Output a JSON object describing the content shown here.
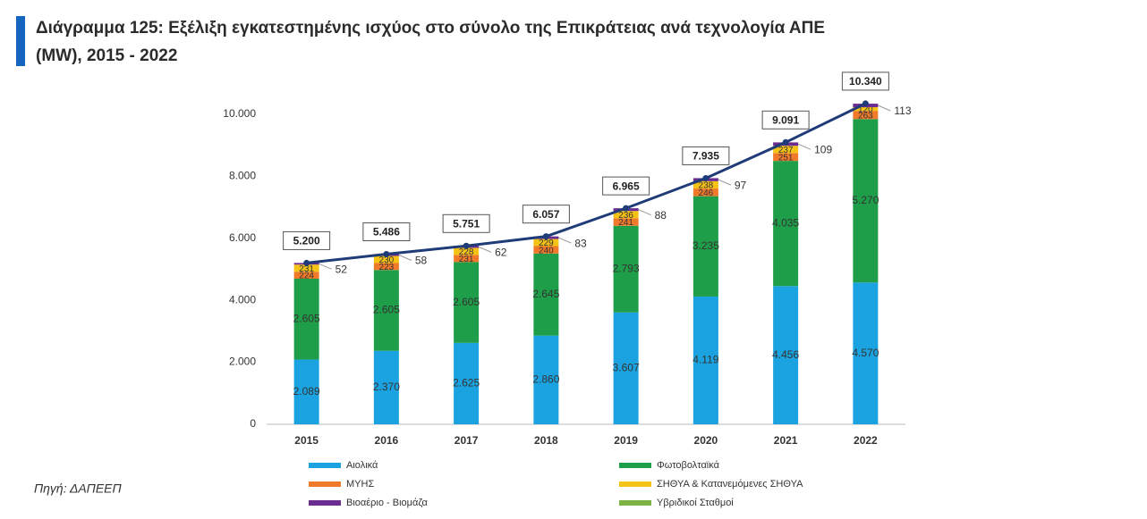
{
  "header": {
    "title_line1": "Διάγραμμα 125: Εξέλιξη εγκατεστημένης ισχύος στο σύνολο της Επικράτειας ανά τεχνολογία ΑΠΕ",
    "title_line2": "(MW), 2015 - 2022"
  },
  "source": "Πηγή: ΔΑΠΕΕΠ",
  "chart_data": {
    "type": "stacked_bar",
    "categories": [
      "2015",
      "2016",
      "2017",
      "2018",
      "2019",
      "2020",
      "2021",
      "2022"
    ],
    "series": [
      {
        "name": "Αιολικά",
        "color": "#1aa3e0",
        "values": [
          2089,
          2370,
          2625,
          2860,
          3607,
          4119,
          4456,
          4570
        ],
        "value_labels": [
          "2.089",
          "2.370",
          "2.625",
          "2.860",
          "3.607",
          "4.119",
          "4.456",
          "4.570"
        ]
      },
      {
        "name": "Φωτοβολταϊκά",
        "color": "#1e9e48",
        "values": [
          2605,
          2605,
          2605,
          2645,
          2793,
          3235,
          4035,
          5270
        ],
        "value_labels": [
          "2.605",
          "2.605",
          "2.605",
          "2.645",
          "2.793",
          "3.235",
          "4.035",
          "5.270"
        ]
      },
      {
        "name": "ΜΥΗΣ",
        "color": "#f07a2a",
        "values": [
          224,
          223,
          231,
          240,
          241,
          246,
          251,
          263
        ]
      },
      {
        "name": "ΣΗΘΥΑ & Κατανεμόμενες ΣΗΘΥΑ",
        "color": "#f5c216",
        "values": [
          231,
          230,
          228,
          229,
          236,
          238,
          237,
          120
        ]
      },
      {
        "name": "Βιοαέριο - Βιομάζα",
        "color": "#6a2c91",
        "values": [
          52,
          58,
          62,
          83,
          88,
          97,
          109,
          113
        ]
      },
      {
        "name": "Υβριδικοί Σταθμοί",
        "color": "#7cb342",
        "values": [
          null,
          null,
          null,
          null,
          null,
          null,
          null,
          null
        ]
      }
    ],
    "totals": {
      "color": "#1f3c78",
      "values": [
        5200,
        5486,
        5751,
        6057,
        6965,
        7935,
        9091,
        10340
      ],
      "value_labels": [
        "5.200",
        "5.486",
        "5.751",
        "6.057",
        "6.965",
        "7.935",
        "9.091",
        "10.340"
      ]
    },
    "ylim": [
      0,
      11000
    ],
    "yticks": [
      0,
      {
        "value": 2000,
        "label": "2.000"
      },
      {
        "value": 4000,
        "label": "4.000"
      },
      {
        "value": 6000,
        "label": "6.000"
      },
      {
        "value": 8000,
        "label": "8.000"
      },
      {
        "value": 10000,
        "label": "10.000"
      }
    ],
    "grid": false
  }
}
